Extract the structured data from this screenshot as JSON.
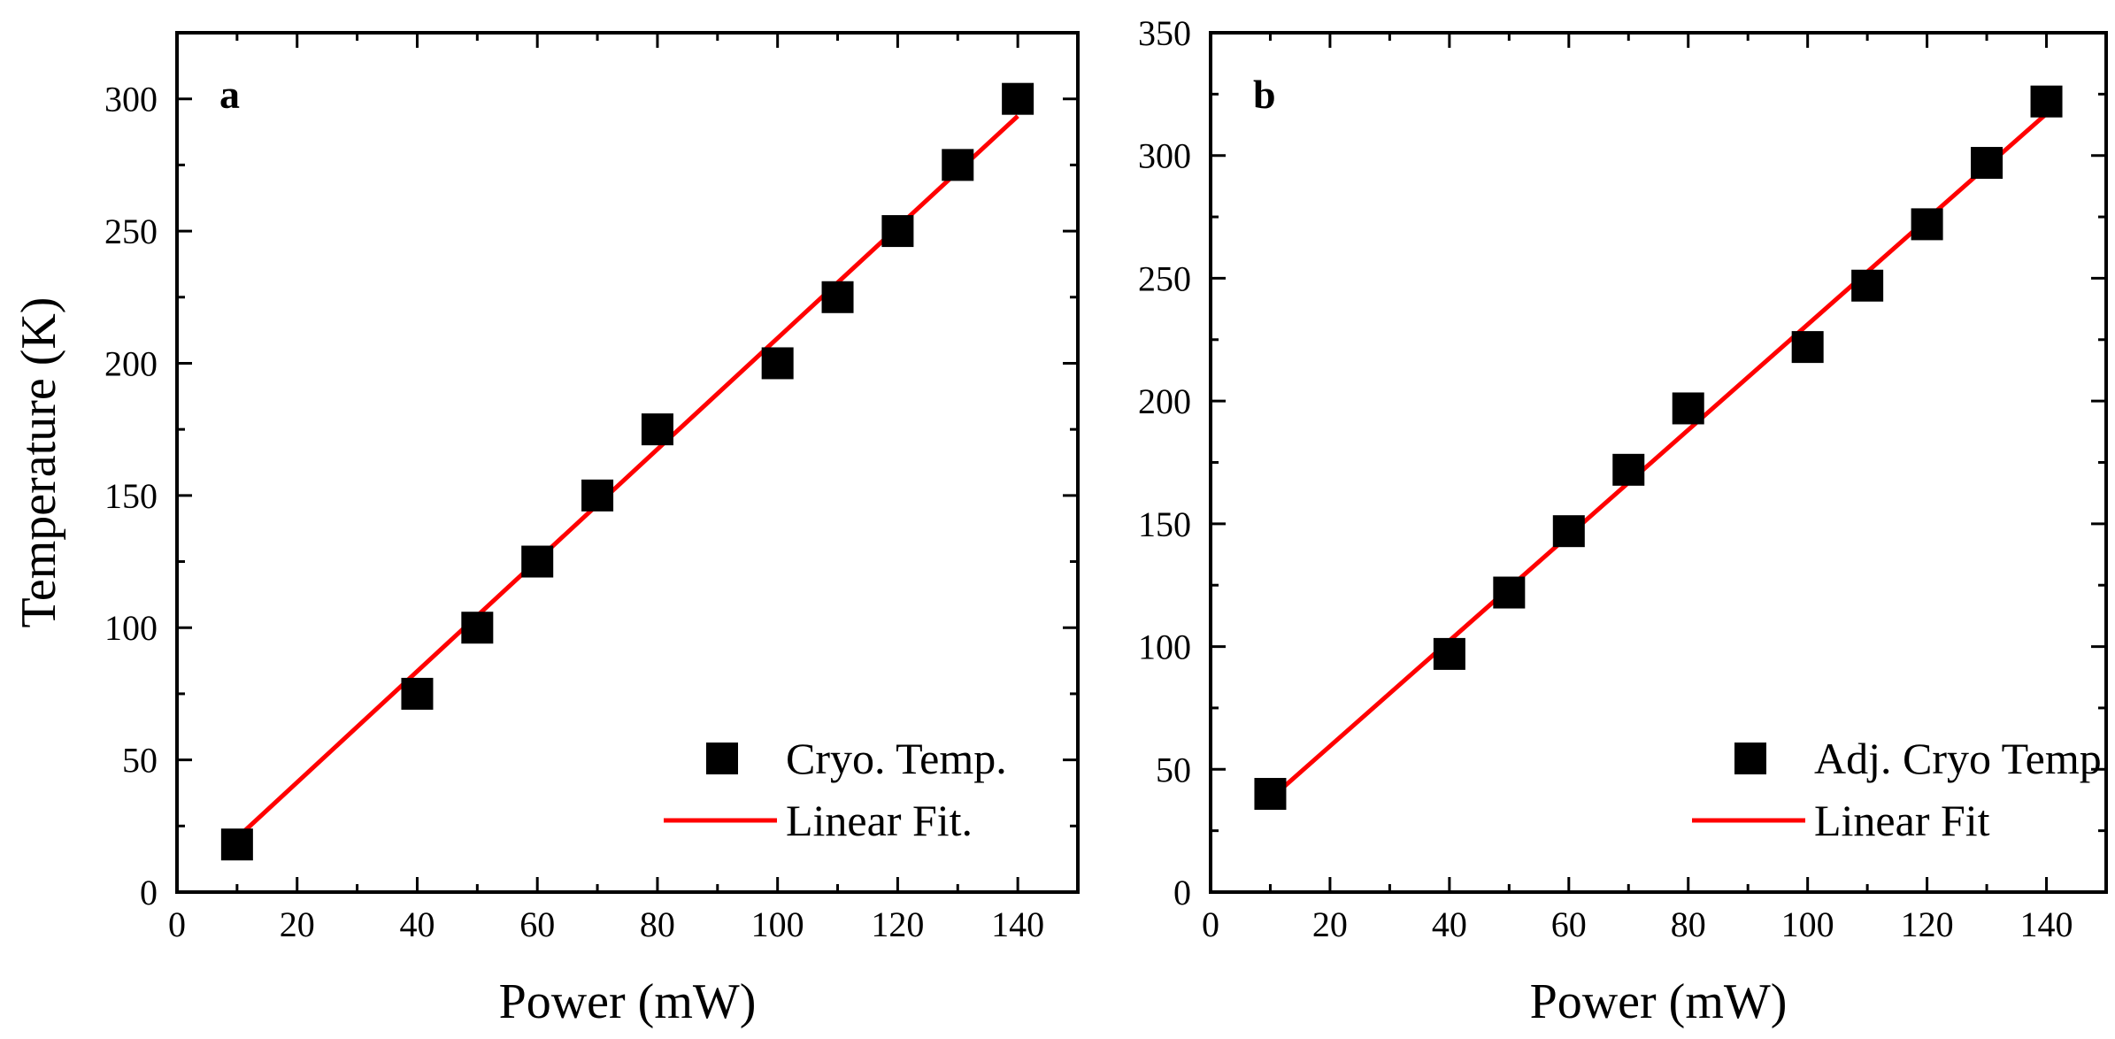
{
  "chart_data": [
    {
      "type": "scatter",
      "panel_label": "a",
      "xlabel": "Power (mW)",
      "ylabel": "Temperature (K)",
      "xlim": [
        0,
        150
      ],
      "ylim": [
        0,
        325
      ],
      "xticks": [
        0,
        20,
        40,
        60,
        80,
        100,
        120,
        140
      ],
      "yticks": [
        0,
        50,
        100,
        150,
        200,
        250,
        300
      ],
      "legend_position": "bottom-right",
      "series": [
        {
          "name": "Cryo. Temp.",
          "kind": "scatter",
          "marker": "square",
          "color": "#000000",
          "x": [
            10,
            40,
            50,
            60,
            70,
            80,
            100,
            110,
            120,
            130,
            140
          ],
          "y": [
            18,
            75,
            100,
            125,
            150,
            175,
            200,
            225,
            250,
            275,
            300
          ]
        },
        {
          "name": "Linear Fit.",
          "kind": "line",
          "color": "#ff0000",
          "x": [
            10,
            140
          ],
          "y": [
            20.5,
            293.5
          ]
        }
      ]
    },
    {
      "type": "scatter",
      "panel_label": "b",
      "xlabel": "Power (mW)",
      "ylabel": "",
      "xlim": [
        0,
        150
      ],
      "ylim": [
        0,
        350
      ],
      "xticks": [
        0,
        20,
        40,
        60,
        80,
        100,
        120,
        140
      ],
      "yticks": [
        0,
        50,
        100,
        150,
        200,
        250,
        300,
        350
      ],
      "legend_position": "bottom-right",
      "series": [
        {
          "name": "Adj. Cryo Temp",
          "kind": "scatter",
          "marker": "square",
          "color": "#000000",
          "x": [
            10,
            40,
            50,
            60,
            70,
            80,
            100,
            110,
            120,
            130,
            140
          ],
          "y": [
            40,
            97,
            122,
            147,
            172,
            197,
            222,
            247,
            272,
            297,
            322
          ]
        },
        {
          "name": "Linear Fit",
          "kind": "line",
          "color": "#ff0000",
          "x": [
            10,
            140
          ],
          "y": [
            38,
            317
          ]
        }
      ]
    }
  ]
}
